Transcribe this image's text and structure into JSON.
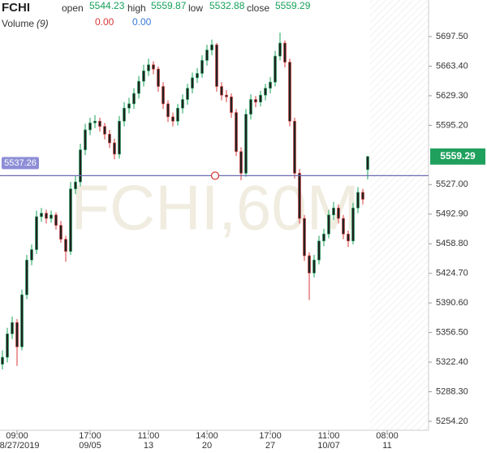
{
  "header": {
    "symbol": "FCHI",
    "open_label": "open",
    "open": "5544.23",
    "high_label": "high",
    "high": "5559.87",
    "low_label": "low",
    "low": "5532.88",
    "close_label": "close",
    "close": "5559.29",
    "volume_label": "Volume",
    "volume_param": "(9)",
    "volume_values": [
      "0.00",
      "0.00"
    ]
  },
  "chart_data": {
    "type": "candlestick",
    "watermark": "FCHI,60M",
    "open": [
      5320,
      5328,
      5355,
      5368,
      5340,
      5400,
      5440,
      5452,
      5490,
      5494,
      5488,
      5492,
      5480,
      5464,
      5450,
      5522,
      5530,
      5567,
      5590,
      5598,
      5600,
      5594,
      5585,
      5575,
      5562,
      5600,
      5615,
      5620,
      5632,
      5646,
      5658,
      5665,
      5660,
      5640,
      5620,
      5605,
      5600,
      5615,
      5625,
      5638,
      5650,
      5655,
      5670,
      5682,
      5688,
      5640,
      5630,
      5628,
      5610,
      5565,
      5540,
      5608,
      5625,
      5622,
      5630,
      5638,
      5645,
      5675,
      5690,
      5668,
      5600,
      5540,
      5488,
      5445,
      5425,
      5440,
      5462,
      5470,
      5492,
      5500,
      5488,
      5470,
      5462,
      5500,
      5518,
      5544.23
    ],
    "high": [
      5336,
      5362,
      5375,
      5372,
      5406,
      5446,
      5458,
      5497,
      5500,
      5498,
      5497,
      5495,
      5485,
      5468,
      5530,
      5537,
      5574,
      5597,
      5604,
      5607,
      5604,
      5598,
      5590,
      5580,
      5606,
      5622,
      5627,
      5638,
      5652,
      5665,
      5672,
      5669,
      5663,
      5645,
      5624,
      5610,
      5620,
      5631,
      5643,
      5656,
      5661,
      5676,
      5688,
      5694,
      5690,
      5645,
      5636,
      5632,
      5614,
      5570,
      5614,
      5631,
      5629,
      5635,
      5643,
      5651,
      5681,
      5702,
      5693,
      5672,
      5604,
      5545,
      5492,
      5449,
      5446,
      5468,
      5476,
      5498,
      5507,
      5504,
      5492,
      5474,
      5506,
      5524,
      5522,
      5559.87
    ],
    "low": [
      5314,
      5322,
      5349,
      5318,
      5336,
      5395,
      5434,
      5447,
      5484,
      5482,
      5483,
      5475,
      5460,
      5438,
      5446,
      5516,
      5525,
      5561,
      5584,
      5592,
      5588,
      5579,
      5569,
      5556,
      5557,
      5594,
      5609,
      5614,
      5626,
      5640,
      5652,
      5654,
      5634,
      5614,
      5599,
      5594,
      5595,
      5609,
      5619,
      5632,
      5644,
      5650,
      5664,
      5676,
      5634,
      5624,
      5622,
      5604,
      5560,
      5532,
      5536,
      5602,
      5616,
      5617,
      5624,
      5632,
      5640,
      5670,
      5662,
      5594,
      5534,
      5482,
      5439,
      5394,
      5420,
      5435,
      5456,
      5465,
      5486,
      5482,
      5464,
      5455,
      5458,
      5494,
      5504,
      5532.88
    ],
    "close": [
      5328,
      5355,
      5368,
      5340,
      5400,
      5440,
      5452,
      5490,
      5494,
      5488,
      5492,
      5480,
      5464,
      5450,
      5522,
      5530,
      5567,
      5590,
      5598,
      5600,
      5594,
      5585,
      5575,
      5562,
      5600,
      5615,
      5620,
      5632,
      5646,
      5658,
      5665,
      5660,
      5640,
      5620,
      5605,
      5600,
      5615,
      5625,
      5638,
      5650,
      5655,
      5670,
      5682,
      5688,
      5640,
      5630,
      5628,
      5610,
      5565,
      5540,
      5608,
      5625,
      5622,
      5630,
      5638,
      5645,
      5675,
      5690,
      5668,
      5600,
      5540,
      5488,
      5445,
      5425,
      5440,
      5462,
      5470,
      5492,
      5500,
      5488,
      5470,
      5462,
      5500,
      5518,
      5510,
      5559.29
    ],
    "up_color": "#17a35a",
    "down_color": "#d83a3a",
    "last_color": "#1fa05c",
    "crosshair_color": "#6b6bb0",
    "ylim": [
      5243.9,
      5739.6
    ],
    "xlim": [
      -0.5,
      87.5
    ],
    "yticks": [
      {
        "value": 5697.5,
        "label": "5697.50"
      },
      {
        "value": 5663.4,
        "label": "5663.40"
      },
      {
        "value": 5629.3,
        "label": "5629.30"
      },
      {
        "value": 5595.2,
        "label": "5595.20"
      },
      {
        "value": 5527,
        "label": "5527.00"
      },
      {
        "value": 5492.9,
        "label": "5492.90"
      },
      {
        "value": 5458.8,
        "label": "5458.80"
      },
      {
        "value": 5424.7,
        "label": "5424.70"
      },
      {
        "value": 5390.6,
        "label": "5390.60"
      },
      {
        "value": 5356.5,
        "label": "5356.50"
      },
      {
        "value": 5322.4,
        "label": "5322.40"
      },
      {
        "value": 5288.3,
        "label": "5288.30"
      },
      {
        "value": 5254.2,
        "label": "5254.20"
      }
    ],
    "xticks": [
      {
        "value": 3,
        "label": "09:00",
        "date": "08/27/2019"
      },
      {
        "value": 18,
        "label": "17:00",
        "date": "09/05"
      },
      {
        "value": 30,
        "label": "11:00",
        "date": "13"
      },
      {
        "value": 42,
        "label": "14:00",
        "date": "20"
      },
      {
        "value": 55,
        "label": "17:00",
        "date": "27"
      },
      {
        "value": 67,
        "label": "11:00",
        "date": "10/07"
      },
      {
        "value": 79,
        "label": "08:00",
        "date": "11"
      }
    ],
    "crosshair": {
      "value": 5537.26,
      "label": "5537.26"
    }
  }
}
